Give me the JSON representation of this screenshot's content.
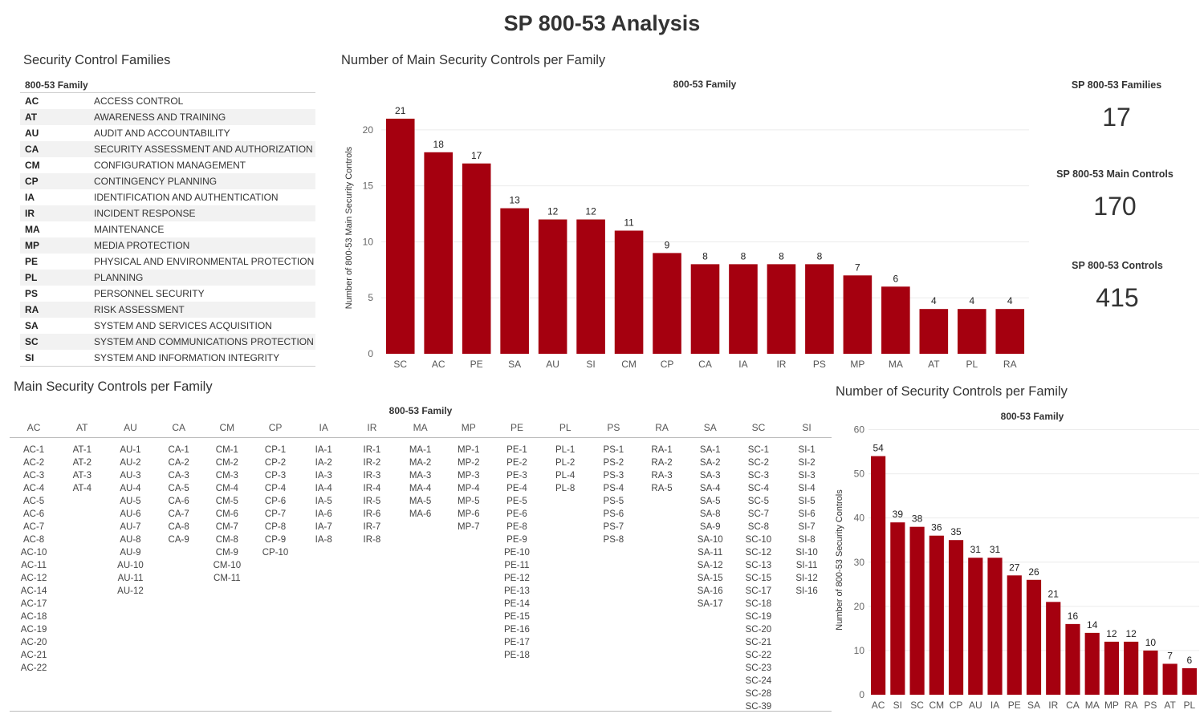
{
  "dashboard_title": "SP 800-53 Analysis",
  "families_panel": {
    "title": "Security Control Families",
    "column_header": "800-53 Family",
    "rows": [
      {
        "code": "AC",
        "name": "ACCESS CONTROL"
      },
      {
        "code": "AT",
        "name": "AWARENESS AND TRAINING"
      },
      {
        "code": "AU",
        "name": "AUDIT AND ACCOUNTABILITY"
      },
      {
        "code": "CA",
        "name": "SECURITY ASSESSMENT AND AUTHORIZATION"
      },
      {
        "code": "CM",
        "name": "CONFIGURATION MANAGEMENT"
      },
      {
        "code": "CP",
        "name": "CONTINGENCY PLANNING"
      },
      {
        "code": "IA",
        "name": "IDENTIFICATION AND AUTHENTICATION"
      },
      {
        "code": "IR",
        "name": "INCIDENT RESPONSE"
      },
      {
        "code": "MA",
        "name": "MAINTENANCE"
      },
      {
        "code": "MP",
        "name": "MEDIA PROTECTION"
      },
      {
        "code": "PE",
        "name": "PHYSICAL AND ENVIRONMENTAL PROTECTION"
      },
      {
        "code": "PL",
        "name": "PLANNING"
      },
      {
        "code": "PS",
        "name": "PERSONNEL SECURITY"
      },
      {
        "code": "RA",
        "name": "RISK ASSESSMENT"
      },
      {
        "code": "SA",
        "name": "SYSTEM AND SERVICES ACQUISITION"
      },
      {
        "code": "SC",
        "name": "SYSTEM AND COMMUNICATIONS PROTECTION"
      },
      {
        "code": "SI",
        "name": "SYSTEM AND INFORMATION INTEGRITY"
      }
    ]
  },
  "kpis": [
    {
      "label": "SP 800-53 Families",
      "value": "17"
    },
    {
      "label": "SP 800-53 Main Controls",
      "value": "170"
    },
    {
      "label": "SP 800-53 Controls",
      "value": "415"
    }
  ],
  "matrix_panel": {
    "title": "Main Security Controls per Family",
    "axis_title": "800-53 Family",
    "columns": [
      {
        "family": "AC",
        "controls": [
          "AC-1",
          "AC-2",
          "AC-3",
          "AC-4",
          "AC-5",
          "AC-6",
          "AC-7",
          "AC-8",
          "AC-10",
          "AC-11",
          "AC-12",
          "AC-14",
          "AC-17",
          "AC-18",
          "AC-19",
          "AC-20",
          "AC-21",
          "AC-22"
        ]
      },
      {
        "family": "AT",
        "controls": [
          "AT-1",
          "AT-2",
          "AT-3",
          "AT-4"
        ]
      },
      {
        "family": "AU",
        "controls": [
          "AU-1",
          "AU-2",
          "AU-3",
          "AU-4",
          "AU-5",
          "AU-6",
          "AU-7",
          "AU-8",
          "AU-9",
          "AU-10",
          "AU-11",
          "AU-12"
        ]
      },
      {
        "family": "CA",
        "controls": [
          "CA-1",
          "CA-2",
          "CA-3",
          "CA-5",
          "CA-6",
          "CA-7",
          "CA-8",
          "CA-9"
        ]
      },
      {
        "family": "CM",
        "controls": [
          "CM-1",
          "CM-2",
          "CM-3",
          "CM-4",
          "CM-5",
          "CM-6",
          "CM-7",
          "CM-8",
          "CM-9",
          "CM-10",
          "CM-11"
        ]
      },
      {
        "family": "CP",
        "controls": [
          "CP-1",
          "CP-2",
          "CP-3",
          "CP-4",
          "CP-6",
          "CP-7",
          "CP-8",
          "CP-9",
          "CP-10"
        ]
      },
      {
        "family": "IA",
        "controls": [
          "IA-1",
          "IA-2",
          "IA-3",
          "IA-4",
          "IA-5",
          "IA-6",
          "IA-7",
          "IA-8"
        ]
      },
      {
        "family": "IR",
        "controls": [
          "IR-1",
          "IR-2",
          "IR-3",
          "IR-4",
          "IR-5",
          "IR-6",
          "IR-7",
          "IR-8"
        ]
      },
      {
        "family": "MA",
        "controls": [
          "MA-1",
          "MA-2",
          "MA-3",
          "MA-4",
          "MA-5",
          "MA-6"
        ]
      },
      {
        "family": "MP",
        "controls": [
          "MP-1",
          "MP-2",
          "MP-3",
          "MP-4",
          "MP-5",
          "MP-6",
          "MP-7"
        ]
      },
      {
        "family": "PE",
        "controls": [
          "PE-1",
          "PE-2",
          "PE-3",
          "PE-4",
          "PE-5",
          "PE-6",
          "PE-8",
          "PE-9",
          "PE-10",
          "PE-11",
          "PE-12",
          "PE-13",
          "PE-14",
          "PE-15",
          "PE-16",
          "PE-17",
          "PE-18"
        ]
      },
      {
        "family": "PL",
        "controls": [
          "PL-1",
          "PL-2",
          "PL-4",
          "PL-8"
        ]
      },
      {
        "family": "PS",
        "controls": [
          "PS-1",
          "PS-2",
          "PS-3",
          "PS-4",
          "PS-5",
          "PS-6",
          "PS-7",
          "PS-8"
        ]
      },
      {
        "family": "RA",
        "controls": [
          "RA-1",
          "RA-2",
          "RA-3",
          "RA-5"
        ]
      },
      {
        "family": "SA",
        "controls": [
          "SA-1",
          "SA-2",
          "SA-3",
          "SA-4",
          "SA-5",
          "SA-8",
          "SA-9",
          "SA-10",
          "SA-11",
          "SA-12",
          "SA-15",
          "SA-16",
          "SA-17"
        ]
      },
      {
        "family": "SC",
        "controls": [
          "SC-1",
          "SC-2",
          "SC-3",
          "SC-4",
          "SC-5",
          "SC-7",
          "SC-8",
          "SC-10",
          "SC-12",
          "SC-13",
          "SC-15",
          "SC-17",
          "SC-18",
          "SC-19",
          "SC-20",
          "SC-21",
          "SC-22",
          "SC-23",
          "SC-24",
          "SC-28",
          "SC-39"
        ]
      },
      {
        "family": "SI",
        "controls": [
          "SI-1",
          "SI-2",
          "SI-3",
          "SI-4",
          "SI-5",
          "SI-6",
          "SI-7",
          "SI-8",
          "SI-10",
          "SI-11",
          "SI-12",
          "SI-16"
        ]
      }
    ]
  },
  "chart_data": [
    {
      "type": "bar",
      "title": "Number of Main Security Controls per Family",
      "xlabel": "800-53 Family",
      "ylabel": "Number of 800-53 Main Security Controls",
      "categories": [
        "SC",
        "AC",
        "PE",
        "SA",
        "AU",
        "SI",
        "CM",
        "CP",
        "CA",
        "IA",
        "IR",
        "PS",
        "MP",
        "MA",
        "AT",
        "PL",
        "RA"
      ],
      "values": [
        21,
        18,
        17,
        13,
        12,
        12,
        11,
        9,
        8,
        8,
        8,
        8,
        7,
        6,
        4,
        4,
        4
      ],
      "ylim": [
        0,
        22.5
      ],
      "yticks": [
        0,
        5,
        10,
        15,
        20
      ],
      "bar_color": "#a5000f",
      "grid": true,
      "data_labels": true
    },
    {
      "type": "bar",
      "title": "Number of Security Controls per Family",
      "xlabel": "800-53 Family",
      "ylabel": "Number of 800-53 Security Controls",
      "categories": [
        "AC",
        "SI",
        "SC",
        "CM",
        "CP",
        "AU",
        "IA",
        "PE",
        "SA",
        "IR",
        "CA",
        "MA",
        "MP",
        "RA",
        "PS",
        "AT",
        "PL"
      ],
      "values": [
        54,
        39,
        38,
        36,
        35,
        31,
        31,
        27,
        26,
        21,
        16,
        14,
        12,
        12,
        10,
        7,
        6
      ],
      "ylim": [
        0,
        61
      ],
      "yticks": [
        0,
        10,
        20,
        30,
        40,
        50,
        60
      ],
      "bar_color": "#a5000f",
      "grid": true,
      "data_labels": true
    }
  ]
}
